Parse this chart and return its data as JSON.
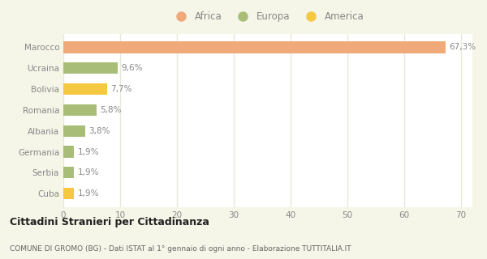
{
  "categories": [
    "Cuba",
    "Serbia",
    "Germania",
    "Albania",
    "Romania",
    "Bolivia",
    "Ucraina",
    "Marocco"
  ],
  "values": [
    1.9,
    1.9,
    1.9,
    3.8,
    5.8,
    7.7,
    9.6,
    67.3
  ],
  "colors": [
    "#f5c842",
    "#a8be78",
    "#a8be78",
    "#a8be78",
    "#a8be78",
    "#f5c842",
    "#a8be78",
    "#f0aa7a"
  ],
  "labels": [
    "1,9%",
    "1,9%",
    "1,9%",
    "3,8%",
    "5,8%",
    "7,7%",
    "9,6%",
    "67,3%"
  ],
  "legend": [
    {
      "label": "Africa",
      "color": "#f0aa7a"
    },
    {
      "label": "Europa",
      "color": "#a8be78"
    },
    {
      "label": "America",
      "color": "#f5c842"
    }
  ],
  "xlim": [
    0,
    72
  ],
  "xticks": [
    0,
    10,
    20,
    30,
    40,
    50,
    60,
    70
  ],
  "title": "Cittadini Stranieri per Cittadinanza",
  "subtitle": "COMUNE DI GROMO (BG) - Dati ISTAT al 1° gennaio di ogni anno - Elaborazione TUTTITALIA.IT",
  "bg_color": "#f5f5e8",
  "plot_bg_color": "#ffffff",
  "grid_color": "#e8e8d8",
  "bar_height": 0.55,
  "label_color": "#888888",
  "title_color": "#222222",
  "subtitle_color": "#666666"
}
